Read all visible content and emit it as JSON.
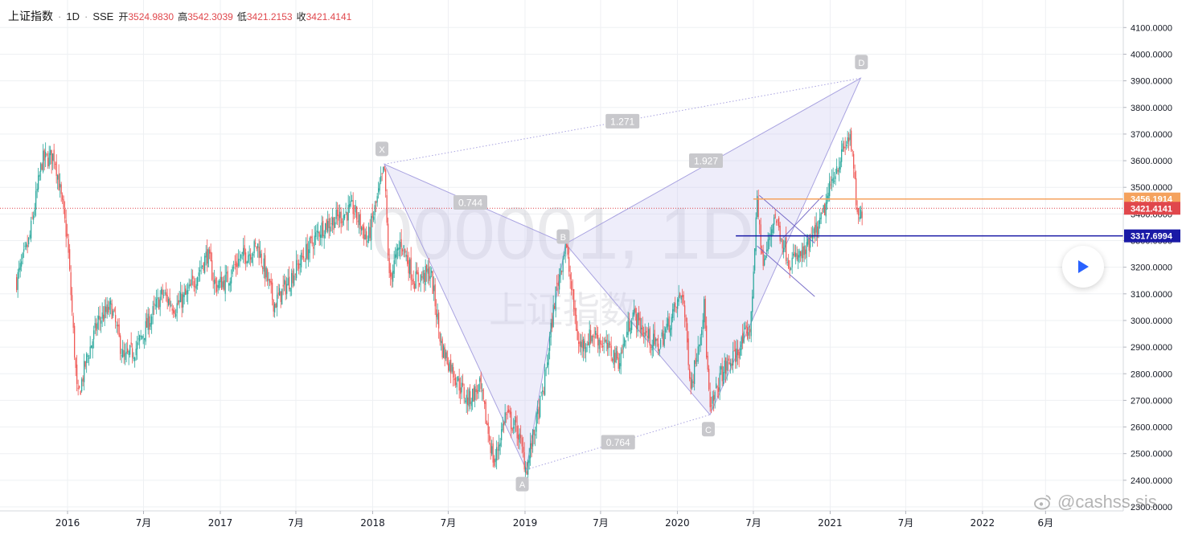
{
  "header": {
    "symbol_name": "上证指数",
    "interval": "1D",
    "exchange": "SSE",
    "ohlc": [
      {
        "label": "开",
        "value": "3524.9830"
      },
      {
        "label": "高",
        "value": "3542.3039"
      },
      {
        "label": "低",
        "value": "3421.2153"
      },
      {
        "label": "收",
        "value": "3421.4141"
      }
    ]
  },
  "watermark": {
    "symbol": "000001, 1D",
    "name": "上证指数"
  },
  "corner_watermark": "@cashss.sis",
  "colors": {
    "up": "#26a69a",
    "down": "#ef5350",
    "pattern_fill": "#c9c6f0",
    "pattern_stroke": "#a9a3e0",
    "orange_line": "#f5a25d",
    "blue_line": "#1a1aa6",
    "last_price": "#e0474c"
  },
  "chart_data": {
    "type": "candlestick",
    "x_ticks": [
      "2016",
      "7月",
      "2017",
      "7月",
      "2018",
      "7月",
      "2019",
      "7月",
      "2020",
      "7月",
      "2021",
      "7月",
      "2022",
      "6月"
    ],
    "y_ticks": [
      "2300.0000",
      "2400.0000",
      "2500.0000",
      "2600.0000",
      "2700.0000",
      "2800.0000",
      "2900.0000",
      "3000.0000",
      "3100.0000",
      "3200.0000",
      "3300.0000",
      "3400.0000",
      "3500.0000",
      "3600.0000",
      "3700.0000",
      "3800.0000",
      "3900.0000",
      "4000.0000",
      "4100.0000"
    ],
    "ylim": [
      2250,
      4150
    ],
    "price_path": [
      {
        "date": "2015-09-01",
        "price": 3150
      },
      {
        "date": "2015-10-01",
        "price": 3300
      },
      {
        "date": "2015-11-01",
        "price": 3600
      },
      {
        "date": "2015-12-01",
        "price": 3620
      },
      {
        "date": "2016-01-01",
        "price": 3300
      },
      {
        "date": "2016-01-25",
        "price": 2700
      },
      {
        "date": "2016-02-15",
        "price": 2850
      },
      {
        "date": "2016-03-15",
        "price": 3000
      },
      {
        "date": "2016-04-15",
        "price": 3050
      },
      {
        "date": "2016-05-15",
        "price": 2850
      },
      {
        "date": "2016-06-15",
        "price": 2900
      },
      {
        "date": "2016-07-15",
        "price": 3000
      },
      {
        "date": "2016-08-15",
        "price": 3100
      },
      {
        "date": "2016-09-15",
        "price": 3050
      },
      {
        "date": "2016-10-15",
        "price": 3100
      },
      {
        "date": "2016-11-15",
        "price": 3200
      },
      {
        "date": "2016-12-01",
        "price": 3250
      },
      {
        "date": "2016-12-20",
        "price": 3130
      },
      {
        "date": "2017-01-15",
        "price": 3150
      },
      {
        "date": "2017-02-15",
        "price": 3230
      },
      {
        "date": "2017-04-01",
        "price": 3280
      },
      {
        "date": "2017-05-10",
        "price": 3060
      },
      {
        "date": "2017-06-15",
        "price": 3150
      },
      {
        "date": "2017-07-15",
        "price": 3230
      },
      {
        "date": "2017-09-01",
        "price": 3350
      },
      {
        "date": "2017-11-15",
        "price": 3420
      },
      {
        "date": "2017-12-20",
        "price": 3300
      },
      {
        "date": "2018-01-29",
        "price": 3570
      },
      {
        "date": "2018-02-10",
        "price": 3150
      },
      {
        "date": "2018-03-10",
        "price": 3300
      },
      {
        "date": "2018-04-10",
        "price": 3150
      },
      {
        "date": "2018-05-20",
        "price": 3180
      },
      {
        "date": "2018-06-15",
        "price": 2900
      },
      {
        "date": "2018-07-15",
        "price": 2800
      },
      {
        "date": "2018-08-15",
        "price": 2700
      },
      {
        "date": "2018-09-15",
        "price": 2750
      },
      {
        "date": "2018-10-19",
        "price": 2460
      },
      {
        "date": "2018-11-15",
        "price": 2650
      },
      {
        "date": "2018-12-15",
        "price": 2580
      },
      {
        "date": "2019-01-04",
        "price": 2440
      },
      {
        "date": "2019-02-15",
        "price": 2750
      },
      {
        "date": "2019-03-15",
        "price": 3100
      },
      {
        "date": "2019-04-08",
        "price": 3290
      },
      {
        "date": "2019-05-10",
        "price": 2900
      },
      {
        "date": "2019-06-15",
        "price": 2950
      },
      {
        "date": "2019-07-15",
        "price": 2900
      },
      {
        "date": "2019-08-15",
        "price": 2850
      },
      {
        "date": "2019-09-15",
        "price": 3030
      },
      {
        "date": "2019-10-15",
        "price": 2950
      },
      {
        "date": "2019-11-15",
        "price": 2900
      },
      {
        "date": "2019-12-15",
        "price": 3000
      },
      {
        "date": "2020-01-13",
        "price": 3110
      },
      {
        "date": "2020-02-03",
        "price": 2750
      },
      {
        "date": "2020-03-05",
        "price": 3050
      },
      {
        "date": "2020-03-19",
        "price": 2650
      },
      {
        "date": "2020-04-15",
        "price": 2800
      },
      {
        "date": "2020-05-20",
        "price": 2870
      },
      {
        "date": "2020-06-25",
        "price": 2980
      },
      {
        "date": "2020-07-09",
        "price": 3450
      },
      {
        "date": "2020-07-25",
        "price": 3200
      },
      {
        "date": "2020-08-20",
        "price": 3400
      },
      {
        "date": "2020-09-25",
        "price": 3220
      },
      {
        "date": "2020-11-01",
        "price": 3250
      },
      {
        "date": "2020-12-10",
        "price": 3370
      },
      {
        "date": "2021-01-10",
        "price": 3550
      },
      {
        "date": "2021-02-18",
        "price": 3700
      },
      {
        "date": "2021-03-09",
        "price": 3360
      },
      {
        "date": "2021-03-20",
        "price": 3421
      }
    ],
    "harmonic_pattern": {
      "points": [
        {
          "label": "X",
          "date": "2018-01-29",
          "price": 3587
        },
        {
          "label": "A",
          "date": "2019-01-04",
          "price": 2440
        },
        {
          "label": "B",
          "date": "2019-04-08",
          "price": 3288
        },
        {
          "label": "C",
          "date": "2020-03-19",
          "price": 2646
        },
        {
          "label": "D",
          "date": "2021-03-15",
          "price": 3910
        }
      ],
      "ratios": [
        {
          "label": "0.744",
          "between": [
            "X",
            "B"
          ]
        },
        {
          "label": "0.764",
          "between": [
            "A",
            "C"
          ]
        },
        {
          "label": "1.927",
          "between": [
            "B",
            "D"
          ]
        },
        {
          "label": "1.271",
          "between": [
            "X",
            "D"
          ]
        }
      ]
    },
    "horizontal_lines": [
      {
        "value": 3456.1914,
        "label": "3456.1914",
        "from_date": "2020-07-01",
        "color": "orange"
      },
      {
        "value": 3317.6994,
        "label": "3317.6994",
        "from_date": "2020-05-20",
        "color": "blue"
      }
    ],
    "last_price": {
      "value": 3421.4141,
      "label": "3421.4141"
    },
    "channel_lines": [
      {
        "from": {
          "date": "2020-07-15",
          "price": 3470
        },
        "to": {
          "date": "2020-11-25",
          "price": 3290
        }
      },
      {
        "from": {
          "date": "2020-07-10",
          "price": 3280
        },
        "to": {
          "date": "2020-11-25",
          "price": 3090
        }
      },
      {
        "from": {
          "date": "2020-09-10",
          "price": 3310
        },
        "to": {
          "date": "2020-12-15",
          "price": 3470
        }
      }
    ]
  }
}
